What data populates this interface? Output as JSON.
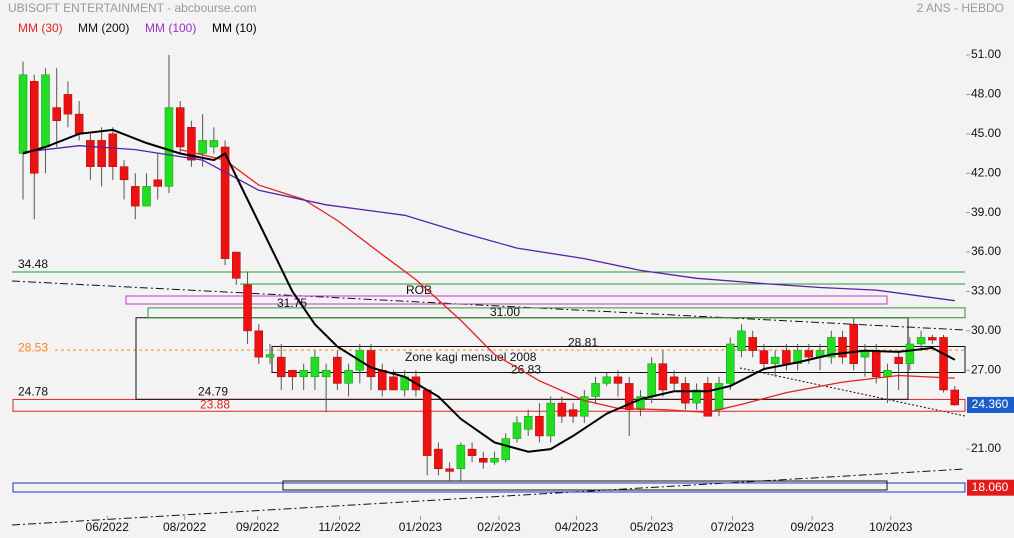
{
  "chart_data": {
    "type": "candlestick",
    "title": "UBISOFT ENTERTAINMENT - abcbourse.com",
    "subtitle": "2 ANS - HEBDO",
    "up_color": "#22dd22",
    "down_color": "#ee1111",
    "xlim": [
      -1,
      84
    ],
    "xticks": [
      {
        "value": 7.5,
        "label": "06/2022"
      },
      {
        "value": 14.4,
        "label": "08/2022"
      },
      {
        "value": 20.9,
        "label": "09/2022"
      },
      {
        "value": 28.2,
        "label": "11/2022"
      },
      {
        "value": 35.4,
        "label": "01/2023"
      },
      {
        "value": 42.4,
        "label": "02/2023"
      },
      {
        "value": 49.3,
        "label": "04/2023"
      },
      {
        "value": 56,
        "label": "05/2023"
      },
      {
        "value": 63.2,
        "label": "07/2023"
      },
      {
        "value": 70.3,
        "label": "09/2023"
      },
      {
        "value": 77.3,
        "label": "10/2023"
      }
    ],
    "ylim": [
      15.6,
      55.19
    ],
    "yticks": [
      {
        "value": 21,
        "label": "21.00"
      },
      {
        "value": 24,
        "label": "24.00"
      },
      {
        "value": 27,
        "label": "27.00"
      },
      {
        "value": 30,
        "label": "30.00"
      },
      {
        "value": 33,
        "label": "33.00"
      },
      {
        "value": 36,
        "label": "36.00"
      },
      {
        "value": 39,
        "label": "39.00"
      },
      {
        "value": 42,
        "label": "42.00"
      },
      {
        "value": 45,
        "label": "45.00"
      },
      {
        "value": 48,
        "label": "48.00"
      },
      {
        "value": 51,
        "label": "51.00"
      }
    ],
    "open": [
      43.5,
      49,
      44,
      47,
      48,
      46.5,
      44.5,
      44.5,
      45,
      42.5,
      41,
      39.5,
      41.5,
      41,
      47,
      45.5,
      43.5,
      44,
      44,
      36,
      33.5,
      30,
      28,
      28,
      27,
      26.5,
      26.5,
      26.5,
      28,
      26,
      27,
      28.5,
      27,
      26.5,
      25.5,
      26.5,
      25.5,
      21,
      19.5,
      19.5,
      21,
      20.3,
      20,
      20.2,
      21.8,
      22.5,
      23.5,
      22,
      24.5,
      24,
      23.5,
      25,
      26,
      26.5,
      26,
      24,
      25,
      27.5,
      26.5,
      26,
      24.5,
      26,
      24,
      26,
      28.5,
      29.5,
      28.5,
      27.5,
      28.5,
      27.5,
      28.5,
      28,
      28,
      29.5,
      30.5,
      28,
      28.5,
      26.5,
      28,
      27.5,
      29,
      29.5,
      29.5,
      25.5
    ],
    "high": [
      50.5,
      49.5,
      50,
      50,
      49,
      47.5,
      45,
      45.5,
      45.5,
      43,
      42,
      42,
      43.5,
      51,
      47.5,
      46,
      46.5,
      45.5,
      44.5,
      36,
      34.5,
      30.5,
      29,
      29,
      27,
      27.5,
      28.5,
      27.5,
      28.5,
      27.5,
      29,
      29,
      27.5,
      27,
      27,
      27,
      25.5,
      21.5,
      20,
      21.5,
      21.5,
      20.8,
      20.8,
      22.2,
      23.5,
      24,
      24.5,
      25,
      25,
      24.5,
      25.5,
      26.5,
      26.8,
      27,
      26.5,
      25.5,
      28,
      28.5,
      27,
      26.5,
      26,
      26.5,
      26.5,
      29.5,
      30.5,
      30,
      29,
      28.5,
      29,
      29,
      29,
      29,
      30,
      30,
      31,
      29,
      29,
      27.5,
      28.5,
      29.5,
      30,
      29.7,
      29.7,
      25.8
    ],
    "low": [
      40,
      38.5,
      42,
      44,
      45.5,
      44.5,
      41.5,
      41,
      41.5,
      40,
      38.5,
      39.5,
      40,
      40.5,
      43.5,
      42.5,
      42.5,
      43.5,
      35,
      33.5,
      29,
      27.5,
      27.5,
      25.5,
      25.5,
      25.5,
      25.5,
      23.8,
      25.5,
      25,
      26,
      25.5,
      25,
      25.5,
      25,
      25,
      19,
      19,
      18.5,
      18.5,
      20,
      19.5,
      19.8,
      20,
      21.5,
      22,
      21.5,
      21.5,
      23,
      23,
      23,
      24.5,
      25.8,
      25,
      22,
      23.5,
      24.5,
      25,
      25.5,
      24,
      24,
      23.5,
      23.5,
      25.5,
      28,
      28,
      27,
      26.5,
      27,
      27,
      27.5,
      27,
      27.5,
      27.5,
      27,
      26.5,
      26,
      24.5,
      25.5,
      27,
      28.5,
      29,
      25.3,
      24.3
    ],
    "close": [
      49.5,
      42,
      49.5,
      46,
      46.5,
      45,
      42.5,
      42.5,
      42.5,
      41.5,
      39.5,
      41,
      41,
      47,
      44,
      43,
      44.5,
      44.5,
      35.5,
      34,
      30,
      28,
      28.2,
      26.5,
      26.5,
      27,
      28,
      27,
      26,
      27,
      28.5,
      26.5,
      25.5,
      25.5,
      26.5,
      25.5,
      20.5,
      19.5,
      19.3,
      21.3,
      20.5,
      20,
      20.3,
      21.8,
      23,
      23.5,
      22,
      24.5,
      23.5,
      23.5,
      25,
      26,
      26.5,
      26,
      24,
      25,
      27.5,
      25.5,
      26,
      24.5,
      25.5,
      23.5,
      26,
      29,
      30,
      28.5,
      27.5,
      28,
      27.5,
      28.5,
      28,
      28.5,
      29.5,
      28,
      27.5,
      28.5,
      26.5,
      27,
      27.5,
      29,
      29.5,
      29.3,
      25.5,
      24.36
    ],
    "series": [
      {
        "name": "MM (30)",
        "color": "#e32222",
        "x": [
          14,
          18,
          21,
          25,
          28,
          32,
          35,
          39,
          42,
          46,
          50,
          53,
          57,
          61,
          64,
          68,
          73,
          78,
          83
        ],
        "values": [
          43.8,
          43,
          41.1,
          40,
          38.4,
          35.8,
          33.9,
          30.8,
          28.2,
          26.2,
          24.7,
          24.1,
          24,
          23.8,
          24.4,
          25.3,
          26.1,
          26.6,
          26.4
        ]
      },
      {
        "name": "MM (200)",
        "color": "#111111",
        "x": [],
        "values": []
      },
      {
        "name": "MM (100)",
        "color": "#5522aa",
        "x": [
          0,
          5,
          10,
          16,
          21,
          27,
          34,
          39,
          44,
          50,
          55,
          60,
          66,
          71,
          76,
          83
        ],
        "values": [
          43.6,
          44.1,
          43.8,
          43,
          40.7,
          39.6,
          38.8,
          37.5,
          36.3,
          35.5,
          34.6,
          34,
          33.6,
          33.3,
          33.1,
          32.3
        ]
      },
      {
        "name": "MM (10)",
        "color": "#000000",
        "x": [
          0,
          2,
          5,
          8,
          11,
          14,
          17,
          18,
          20,
          22,
          24,
          26,
          28,
          31,
          34,
          37,
          39,
          42,
          45,
          47,
          49,
          52,
          55,
          58,
          61,
          63,
          66,
          69,
          72,
          75,
          78,
          81,
          83
        ],
        "values": [
          43.5,
          44,
          45,
          45.3,
          44.3,
          43.5,
          43,
          43.5,
          40,
          36.5,
          33,
          30.5,
          28.8,
          27.2,
          26.5,
          25,
          23.3,
          21.5,
          20.8,
          21,
          22,
          23.7,
          24.8,
          25.4,
          25.4,
          25.8,
          27.1,
          27.6,
          28.2,
          28.5,
          28.4,
          28.7,
          27.8
        ]
      }
    ],
    "levels": [
      {
        "text": "34.48",
        "value": 34.48
      },
      {
        "text": "28.53",
        "value": 28.53
      },
      {
        "text": "24.78",
        "value": 24.78
      },
      {
        "text": "23.88",
        "value": 23.88
      },
      {
        "text": "24.79",
        "value": 24.79
      },
      {
        "text": "31.00",
        "value": 31
      },
      {
        "text": "31.75",
        "value": 31.75
      },
      {
        "text": "28.81",
        "value": 28.81
      },
      {
        "text": "26.83",
        "value": 26.83
      }
    ],
    "notes": [
      "ROB",
      "Zone kagi mensuel 2008"
    ],
    "price_tags": [
      {
        "value": 24.36,
        "label": "24.360",
        "color": "#1a5fc8"
      },
      {
        "value": 18.06,
        "label": "18.060",
        "color": "#e31a1a"
      }
    ]
  }
}
